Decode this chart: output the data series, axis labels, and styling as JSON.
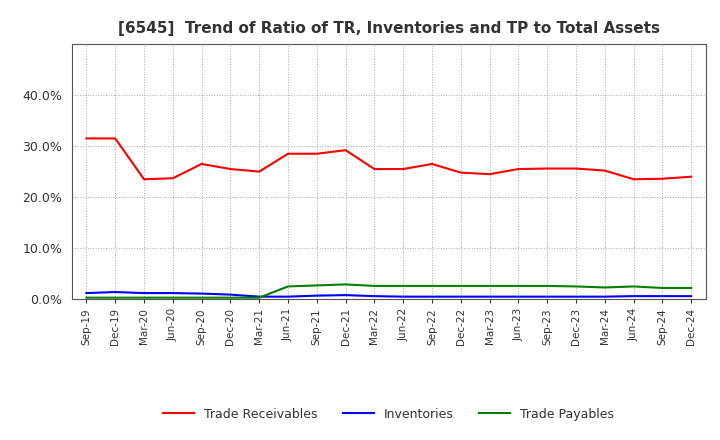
{
  "title": "[6545]  Trend of Ratio of TR, Inventories and TP to Total Assets",
  "x_labels": [
    "Sep-19",
    "Dec-19",
    "Mar-20",
    "Jun-20",
    "Sep-20",
    "Dec-20",
    "Mar-21",
    "Jun-21",
    "Sep-21",
    "Dec-21",
    "Mar-22",
    "Jun-22",
    "Sep-22",
    "Dec-22",
    "Mar-23",
    "Jun-23",
    "Sep-23",
    "Dec-23",
    "Mar-24",
    "Jun-24",
    "Sep-24",
    "Dec-24"
  ],
  "trade_receivables": [
    0.315,
    0.315,
    0.235,
    0.237,
    0.265,
    0.255,
    0.25,
    0.285,
    0.285,
    0.292,
    0.255,
    0.255,
    0.265,
    0.248,
    0.245,
    0.255,
    0.256,
    0.256,
    0.252,
    0.235,
    0.236,
    0.24
  ],
  "inventories": [
    0.012,
    0.014,
    0.012,
    0.012,
    0.011,
    0.009,
    0.005,
    0.005,
    0.007,
    0.008,
    0.006,
    0.005,
    0.005,
    0.005,
    0.005,
    0.005,
    0.005,
    0.005,
    0.005,
    0.006,
    0.006,
    0.006
  ],
  "trade_payables": [
    0.003,
    0.003,
    0.003,
    0.003,
    0.003,
    0.003,
    0.003,
    0.025,
    0.027,
    0.029,
    0.026,
    0.026,
    0.026,
    0.026,
    0.026,
    0.026,
    0.026,
    0.025,
    0.023,
    0.025,
    0.022,
    0.022
  ],
  "ylim": [
    0.0,
    0.5
  ],
  "yticks": [
    0.0,
    0.1,
    0.2,
    0.3,
    0.4
  ],
  "line_color_tr": "#ff0000",
  "line_color_inv": "#0000ff",
  "line_color_tp": "#008000",
  "background_color": "#ffffff",
  "grid_color": "#aaaaaa",
  "legend_labels": [
    "Trade Receivables",
    "Inventories",
    "Trade Payables"
  ],
  "title_color": "#333333",
  "tick_color": "#333333"
}
